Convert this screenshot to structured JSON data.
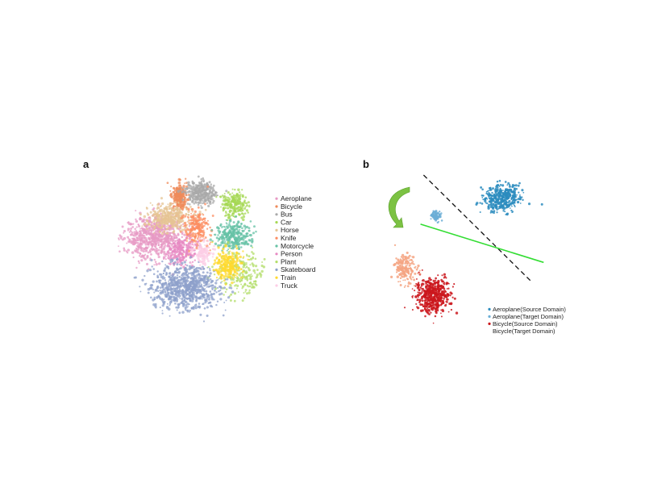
{
  "panels": {
    "a_label": "a",
    "b_label": "b"
  },
  "chart_data": [
    {
      "type": "scatter",
      "panel": "a",
      "title": "",
      "grid": false,
      "legend_placement": "right",
      "series": [
        {
          "name": "Aeroplane",
          "color": "#e79ac4",
          "center": [
            -3.5,
            0.8
          ],
          "spread": [
            2.4,
            1.6
          ],
          "n": 700
        },
        {
          "name": "Bicycle",
          "color": "#ef8b5b",
          "center": [
            -1.1,
            4.2
          ],
          "spread": [
            0.6,
            1.0
          ],
          "n": 260
        },
        {
          "name": "Bus",
          "color": "#a9a9a9",
          "center": [
            0.8,
            4.5
          ],
          "spread": [
            1.2,
            0.9
          ],
          "n": 320
        },
        {
          "name": "Car",
          "color": "#a6d854",
          "center": [
            3.9,
            3.5
          ],
          "spread": [
            1.0,
            1.0
          ],
          "n": 220
        },
        {
          "name": "Horse",
          "color": "#e5c494",
          "center": [
            -2.0,
            2.4
          ],
          "spread": [
            1.8,
            1.0
          ],
          "n": 380
        },
        {
          "name": "Knife",
          "color": "#fc8d62",
          "center": [
            0.4,
            1.5
          ],
          "spread": [
            1.0,
            1.5
          ],
          "n": 220
        },
        {
          "name": "Motorcycle",
          "color": "#66c2a5",
          "center": [
            3.8,
            0.9
          ],
          "spread": [
            1.4,
            1.0
          ],
          "n": 300
        },
        {
          "name": "Person",
          "color": "#e78ac3",
          "center": [
            -1.0,
            -0.5
          ],
          "spread": [
            1.2,
            1.0
          ],
          "n": 220
        },
        {
          "name": "Plant",
          "color": "#b3de69",
          "center": [
            4.4,
            -2.3
          ],
          "spread": [
            2.0,
            1.8
          ],
          "n": 200
        },
        {
          "name": "Skateboard",
          "color": "#8da0cb",
          "center": [
            -0.6,
            -3.5
          ],
          "spread": [
            2.8,
            1.7
          ],
          "n": 820
        },
        {
          "name": "Train",
          "color": "#ffd92f",
          "center": [
            3.3,
            -1.6
          ],
          "spread": [
            1.1,
            1.1
          ],
          "n": 240
        },
        {
          "name": "Truck",
          "color": "#fccde5",
          "center": [
            1.0,
            -0.6
          ],
          "spread": [
            0.8,
            0.8
          ],
          "n": 120
        }
      ],
      "xlim": [
        -7,
        7
      ],
      "ylim": [
        -6.5,
        6.5
      ]
    },
    {
      "type": "scatter",
      "panel": "b",
      "title": "",
      "grid": false,
      "legend_placement": "bottom-right",
      "series": [
        {
          "name": "Aeroplane(Source Domain)",
          "color": "#2b8cbe",
          "center": [
            5.5,
            3.5
          ],
          "spread": [
            1.1,
            0.9
          ],
          "n": 420
        },
        {
          "name": "Aeroplane(Target Domain)",
          "color": "#6baed6",
          "center": [
            1.2,
            2.2
          ],
          "spread": [
            0.3,
            0.35
          ],
          "n": 90
        },
        {
          "name": "Bicycle(Source Domain)",
          "color": "#cb181d",
          "center": [
            1.0,
            -3.6
          ],
          "spread": [
            1.0,
            1.1
          ],
          "n": 520
        },
        {
          "name": "Bicycle(Target Domain)",
          "color": "#f4a582",
          "center": [
            -0.8,
            -1.7
          ],
          "spread": [
            0.6,
            0.9
          ],
          "n": 180
        }
      ],
      "annotations": {
        "boundary_dashed_line": {
          "from": [
            0.4,
            5.2
          ],
          "to": [
            7.4,
            -2.6
          ]
        },
        "boundary_green_line": {
          "from": [
            0.2,
            1.6
          ],
          "to": [
            8.2,
            -1.2
          ]
        },
        "arrow": "curved arrow indicating rotation of the decision boundary"
      },
      "xlim": [
        -2.5,
        8.5
      ],
      "ylim": [
        -6.5,
        6.5
      ]
    }
  ]
}
